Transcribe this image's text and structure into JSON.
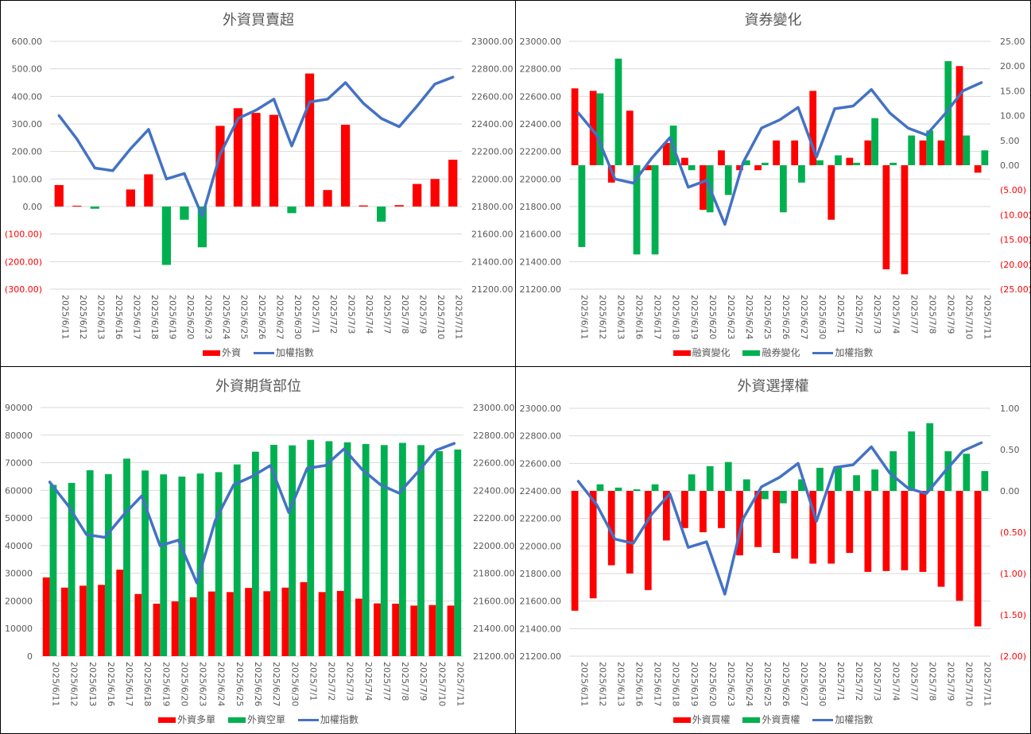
{
  "colors": {
    "red": "#ff0000",
    "green": "#00b050",
    "line": "#4472c4",
    "grid": "#d9d9d9",
    "text": "#595959",
    "negative_text": "#ff0000"
  },
  "chart_data": [
    {
      "id": "foreign",
      "type": "bar",
      "title": "外資買賣超",
      "categories": [
        "2025/6/11",
        "2025/6/12",
        "2025/6/13",
        "2025/6/16",
        "2025/6/17",
        "2025/6/18",
        "2025/6/19",
        "2025/6/20",
        "2025/6/23",
        "2025/6/24",
        "2025/6/25",
        "2025/6/26",
        "2025/6/27",
        "2025/6/30",
        "2025/7/1",
        "2025/7/2",
        "2025/7/3",
        "2025/7/4",
        "2025/7/7",
        "2025/7/8",
        "2025/7/9",
        "2025/7/10",
        "2025/7/11"
      ],
      "left_axis": {
        "min": -300,
        "max": 600,
        "step": 100,
        "ticks": [
          "(300.00)",
          "(200.00)",
          "(100.00)",
          "0.00",
          "100.00",
          "200.00",
          "300.00",
          "400.00",
          "500.00",
          "600.00"
        ]
      },
      "right_axis": {
        "min": 21200,
        "max": 23000,
        "step": 200,
        "ticks": [
          "21200.00",
          "21400.00",
          "21600.00",
          "21800.00",
          "22000.00",
          "22200.00",
          "22400.00",
          "22600.00",
          "22800.00",
          "23000.00"
        ]
      },
      "series": [
        {
          "name": "外資",
          "kind": "bar",
          "axis": "left",
          "color_mode": "sign",
          "values": [
            78,
            3,
            -8,
            0,
            62,
            117,
            -212,
            -48,
            -148,
            293,
            357,
            340,
            333,
            -24,
            483,
            60,
            297,
            4,
            -55,
            5,
            82,
            100,
            170
          ]
        },
        {
          "name": "加權指數",
          "kind": "line",
          "axis": "right",
          "color": "#4472c4",
          "values": [
            22460,
            22290,
            22080,
            22060,
            22220,
            22360,
            22000,
            22040,
            21730,
            22180,
            22440,
            22500,
            22580,
            22240,
            22560,
            22580,
            22700,
            22550,
            22440,
            22380,
            22530,
            22690,
            22740
          ]
        }
      ],
      "legend": [
        "外資",
        "加權指數"
      ]
    },
    {
      "id": "margin",
      "type": "bar",
      "title": "資券變化",
      "categories": [
        "2025/6/11",
        "2025/6/12",
        "2025/6/13",
        "2025/6/16",
        "2025/6/17",
        "2025/6/18",
        "2025/6/19",
        "2025/6/20",
        "2025/6/23",
        "2025/6/24",
        "2025/6/25",
        "2025/6/26",
        "2025/6/27",
        "2025/6/30",
        "2025/7/1",
        "2025/7/2",
        "2025/7/3",
        "2025/7/4",
        "2025/7/7",
        "2025/7/8",
        "2025/7/9",
        "2025/7/10",
        "2025/7/11"
      ],
      "left_axis": {
        "min": 21200,
        "max": 23000,
        "step": 200,
        "ticks": [
          "21200.00",
          "21400.00",
          "21600.00",
          "21800.00",
          "22000.00",
          "22200.00",
          "22400.00",
          "22600.00",
          "22800.00",
          "23000.00"
        ]
      },
      "right_axis": {
        "min": -25,
        "max": 25,
        "step": 5,
        "ticks": [
          "(25.00)",
          "(20.00)",
          "(15.00)",
          "(10.00)",
          "(5.00)",
          "0.00",
          "5.00",
          "10.00",
          "15.00",
          "20.00",
          "25.00"
        ]
      },
      "series": [
        {
          "name": "融資變化",
          "kind": "bar",
          "axis": "right",
          "color": "#ff0000",
          "values": [
            15.5,
            15.0,
            -3.5,
            11.0,
            -1.0,
            4.5,
            1.5,
            -9.0,
            3.0,
            -1.0,
            -1.0,
            5.0,
            5.0,
            15.0,
            -11.0,
            1.5,
            5.0,
            -21.0,
            -22.0,
            5.0,
            5.0,
            20.0,
            -1.5
          ]
        },
        {
          "name": "融券變化",
          "kind": "bar",
          "axis": "right",
          "color": "#00b050",
          "values": [
            -16.5,
            14.5,
            21.5,
            -18.0,
            -18.0,
            8.0,
            -1.0,
            -9.5,
            -6.0,
            1.0,
            0.5,
            -9.5,
            -3.5,
            1.0,
            2.0,
            0.5,
            9.5,
            0.5,
            6.0,
            7.0,
            21.0,
            6.0,
            3.0
          ]
        },
        {
          "name": "加權指數",
          "kind": "line",
          "axis": "left",
          "color": "#4472c4",
          "values": [
            22480,
            22320,
            22000,
            21970,
            22150,
            22300,
            21940,
            21990,
            21670,
            22120,
            22370,
            22430,
            22520,
            22160,
            22510,
            22530,
            22650,
            22480,
            22370,
            22320,
            22470,
            22640,
            22700
          ]
        }
      ],
      "legend": [
        "融資變化",
        "融券變化",
        "加權指數"
      ]
    },
    {
      "id": "futures",
      "type": "bar",
      "title": "外資期貨部位",
      "categories": [
        "2025/6/11",
        "2025/6/12",
        "2025/6/13",
        "2025/6/16",
        "2025/6/17",
        "2025/6/18",
        "2025/6/19",
        "2025/6/20",
        "2025/6/23",
        "2025/6/24",
        "2025/6/25",
        "2025/6/26",
        "2025/6/27",
        "2025/6/30",
        "2025/7/1",
        "2025/7/2",
        "2025/7/3",
        "2025/7/4",
        "2025/7/7",
        "2025/7/8",
        "2025/7/9",
        "2025/7/10",
        "2025/7/11"
      ],
      "left_axis": {
        "min": 0,
        "max": 90000,
        "step": 10000,
        "ticks": [
          "0",
          "10000",
          "20000",
          "30000",
          "40000",
          "50000",
          "60000",
          "70000",
          "80000",
          "90000"
        ]
      },
      "right_axis": {
        "min": 21200,
        "max": 23000,
        "step": 200,
        "ticks": [
          "21200.00",
          "21400.00",
          "21600.00",
          "21800.00",
          "22000.00",
          "22200.00",
          "22400.00",
          "22600.00",
          "22800.00",
          "23000.00"
        ]
      },
      "series": [
        {
          "name": "外資多單",
          "kind": "bar",
          "axis": "left",
          "color": "#ff0000",
          "values": [
            28500,
            24800,
            25500,
            25800,
            31300,
            22500,
            19000,
            19800,
            21300,
            23400,
            23200,
            24700,
            23500,
            24800,
            26800,
            23200,
            23600,
            20800,
            19100,
            19000,
            18300,
            18500,
            18300
          ]
        },
        {
          "name": "外資空單",
          "kind": "bar",
          "axis": "left",
          "color": "#00b050",
          "values": [
            62000,
            62700,
            67300,
            65900,
            71500,
            67200,
            65800,
            65000,
            66100,
            66600,
            69400,
            74000,
            76500,
            76300,
            78300,
            77800,
            77400,
            76800,
            76400,
            77200,
            76400,
            74200,
            74800
          ]
        },
        {
          "name": "加權指數",
          "kind": "line",
          "axis": "right",
          "color": "#4472c4",
          "values": [
            22460,
            22290,
            22080,
            22060,
            22220,
            22360,
            22000,
            22040,
            21730,
            22180,
            22440,
            22500,
            22580,
            22240,
            22560,
            22580,
            22700,
            22550,
            22440,
            22380,
            22530,
            22690,
            22740
          ]
        }
      ],
      "legend": [
        "外資多單",
        "外資空單",
        "加權指數"
      ]
    },
    {
      "id": "options",
      "type": "bar",
      "title": "外資選擇權",
      "categories": [
        "2025/6/11",
        "2025/6/12",
        "2025/6/13",
        "2025/6/16",
        "2025/6/17",
        "2025/6/18",
        "2025/6/19",
        "2025/6/20",
        "2025/6/23",
        "2025/6/24",
        "2025/6/25",
        "2025/6/26",
        "2025/6/27",
        "2025/6/30",
        "2025/7/1",
        "2025/7/2",
        "2025/7/3",
        "2025/7/4",
        "2025/7/7",
        "2025/7/8",
        "2025/7/9",
        "2025/7/10",
        "2025/7/11"
      ],
      "left_axis": {
        "min": 21200,
        "max": 23000,
        "step": 200,
        "ticks": [
          "21200.00",
          "21400.00",
          "21600.00",
          "21800.00",
          "22000.00",
          "22200.00",
          "22400.00",
          "22600.00",
          "22800.00",
          "23000.00"
        ]
      },
      "right_axis": {
        "min": -2.0,
        "max": 1.0,
        "step": 0.5,
        "ticks": [
          "(2.00)",
          "(1.50)",
          "(1.00)",
          "(0.50)",
          "0.00",
          "0.50",
          "1.00"
        ]
      },
      "series": [
        {
          "name": "外資買權",
          "kind": "bar",
          "axis": "right",
          "color": "#ff0000",
          "values": [
            -1.45,
            -1.3,
            -0.9,
            -1.0,
            -1.2,
            -0.6,
            -0.45,
            -0.5,
            -0.45,
            -0.78,
            -0.68,
            -0.75,
            -0.82,
            -0.88,
            -0.88,
            -0.75,
            -0.98,
            -0.97,
            -0.96,
            -0.98,
            -1.16,
            -1.33,
            -1.64
          ]
        },
        {
          "name": "外資賣權",
          "kind": "bar",
          "axis": "right",
          "color": "#00b050",
          "values": [
            0.0,
            0.08,
            0.04,
            0.02,
            0.08,
            0.0,
            0.2,
            0.3,
            0.35,
            0.14,
            -0.1,
            -0.15,
            0.14,
            0.28,
            0.28,
            0.19,
            0.26,
            0.48,
            0.72,
            0.82,
            0.48,
            0.45,
            0.24
          ]
        },
        {
          "name": "加權指數",
          "kind": "line",
          "axis": "left",
          "color": "#4472c4",
          "values": [
            22470,
            22300,
            22050,
            22020,
            22230,
            22380,
            21990,
            22030,
            21650,
            22200,
            22430,
            22500,
            22600,
            22180,
            22570,
            22590,
            22720,
            22530,
            22420,
            22380,
            22540,
            22690,
            22750
          ]
        }
      ],
      "legend": [
        "外資買權",
        "外資賣權",
        "加權指數"
      ]
    }
  ]
}
